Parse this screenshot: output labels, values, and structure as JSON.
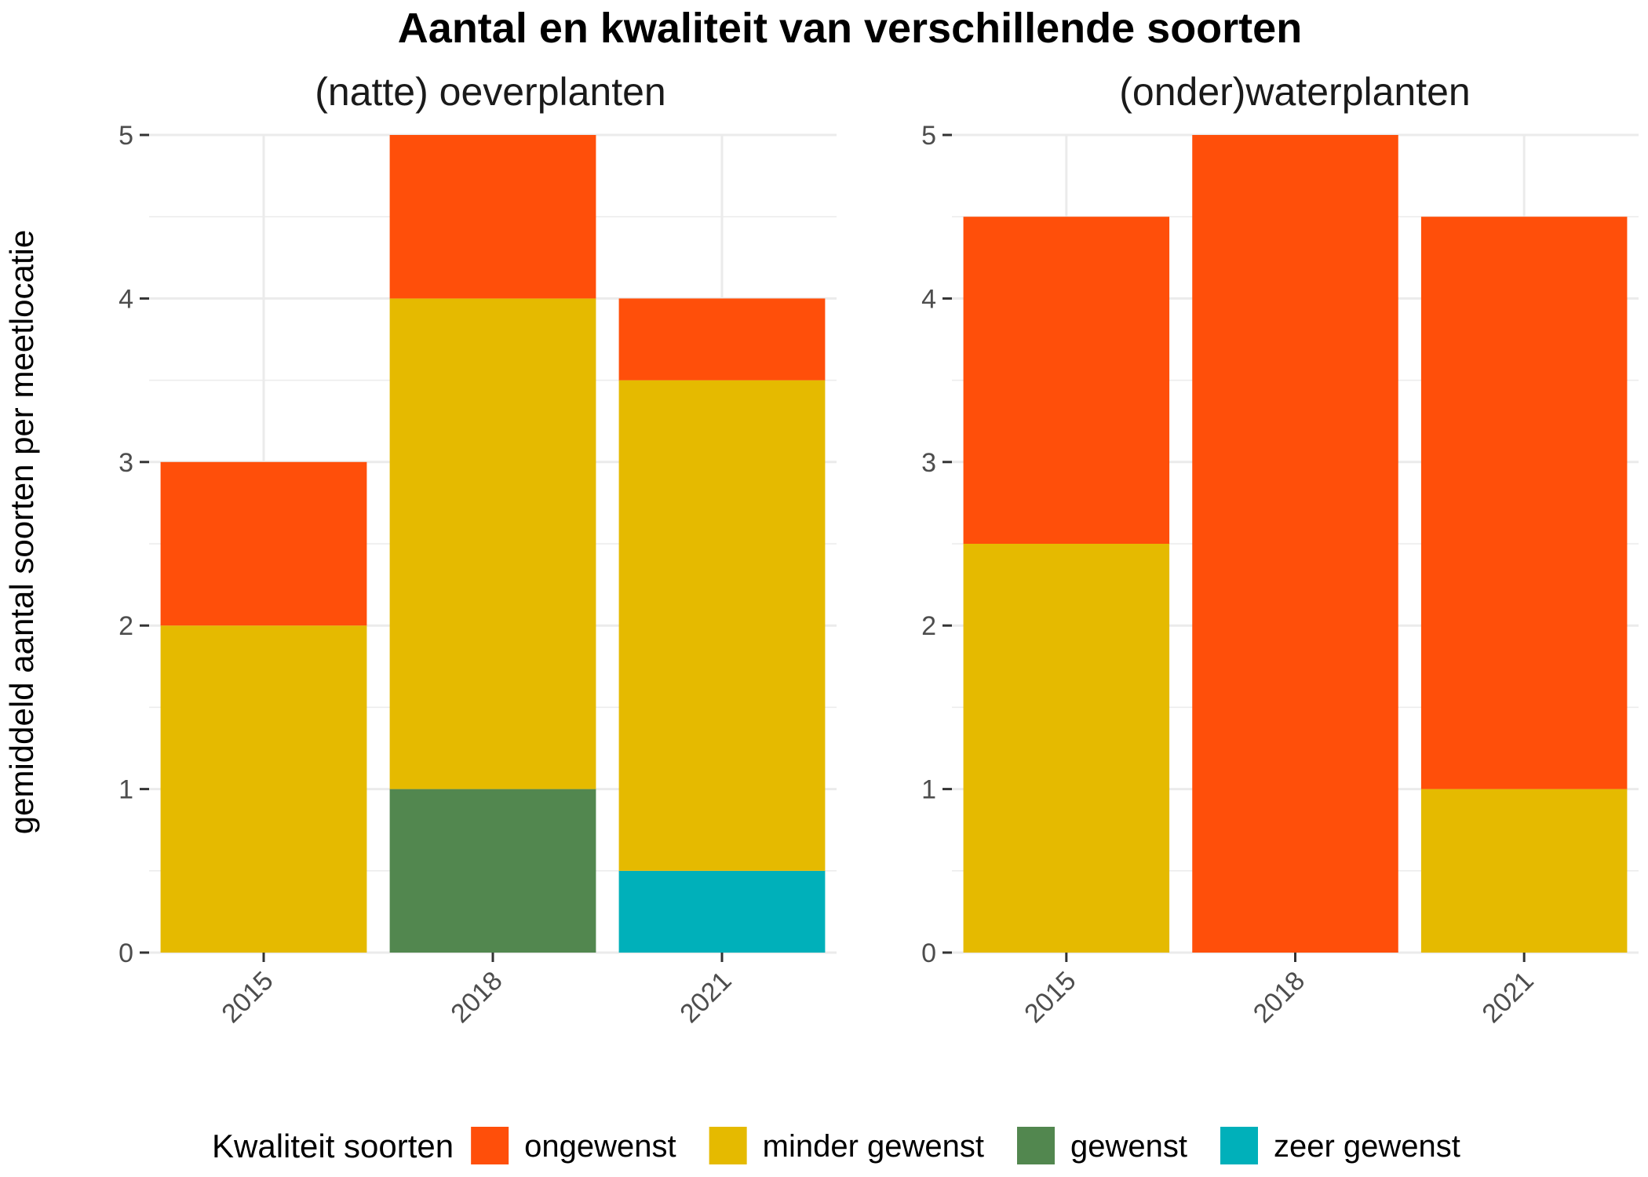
{
  "chart_data": {
    "type": "bar",
    "stacked": true,
    "title": "Aantal en kwaliteit van verschillende soorten",
    "ylabel": "gemiddeld aantal soorten per meetlocatie",
    "xlabel": "",
    "ylim": [
      0,
      5
    ],
    "yticks": [
      0,
      1,
      2,
      3,
      4,
      5
    ],
    "grid": true,
    "legend": {
      "title": "Kwaliteit soorten",
      "placement": "bottom",
      "items": [
        {
          "name": "ongewenst",
          "color": "#FF4F0A"
        },
        {
          "name": "minder gewenst",
          "color": "#E5BA00"
        },
        {
          "name": "gewenst",
          "color": "#52874F"
        },
        {
          "name": "zeer gewenst",
          "color": "#00B0BA"
        }
      ]
    },
    "facets": [
      {
        "title": "(natte) oeverplanten",
        "categories": [
          "2015",
          "2018",
          "2021"
        ],
        "series": [
          {
            "name": "zeer gewenst",
            "values": [
              0,
              0,
              0.5
            ]
          },
          {
            "name": "gewenst",
            "values": [
              0,
              1,
              0
            ]
          },
          {
            "name": "minder gewenst",
            "values": [
              2,
              3,
              3
            ]
          },
          {
            "name": "ongewenst",
            "values": [
              1,
              1,
              0.5
            ]
          }
        ]
      },
      {
        "title": "(onder)waterplanten",
        "categories": [
          "2015",
          "2018",
          "2021"
        ],
        "series": [
          {
            "name": "zeer gewenst",
            "values": [
              0,
              0,
              0
            ]
          },
          {
            "name": "gewenst",
            "values": [
              0,
              0,
              0
            ]
          },
          {
            "name": "minder gewenst",
            "values": [
              2.5,
              0,
              1
            ]
          },
          {
            "name": "ongewenst",
            "values": [
              2,
              5,
              3.5
            ]
          }
        ]
      }
    ]
  }
}
